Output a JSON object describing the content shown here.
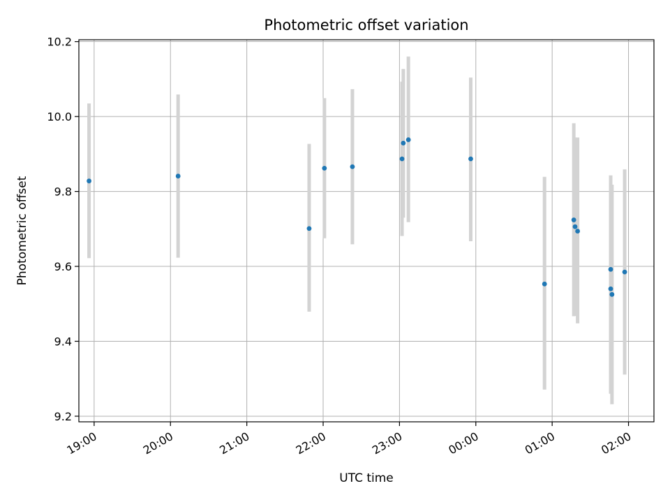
{
  "chart_data": {
    "type": "scatter",
    "title": "Photometric offset variation",
    "xlabel": "UTC time",
    "ylabel": "Photometric offset",
    "x_axis": {
      "kind": "time",
      "range": [
        "18:48",
        "02:20"
      ],
      "ticks": [
        {
          "t": "18:60",
          "label": "19:00"
        },
        {
          "t": "20:00",
          "label": "20:00"
        },
        {
          "t": "21:00",
          "label": "21:00"
        },
        {
          "t": "22:00",
          "label": "22:00"
        },
        {
          "t": "23:00",
          "label": "23:00"
        },
        {
          "t": "24:00",
          "label": "00:00"
        },
        {
          "t": "25:00",
          "label": "01:00"
        },
        {
          "t": "26:00",
          "label": "02:00"
        }
      ]
    },
    "y_axis": {
      "range": [
        9.185,
        10.205
      ],
      "ticks": [
        "9.2",
        "9.4",
        "9.6",
        "9.8",
        "10.0",
        "10.2"
      ]
    },
    "grid": true,
    "colors": {
      "marker": "#1f77b4",
      "errorbar": "#d3d3d3",
      "grid": "#b0b0b0"
    },
    "points": [
      {
        "time": "18:56",
        "offset": 9.828,
        "low": 9.622,
        "high": 10.035
      },
      {
        "time": "20:06",
        "offset": 9.841,
        "low": 9.623,
        "high": 10.059
      },
      {
        "time": "21:49",
        "offset": 9.701,
        "low": 9.479,
        "high": 9.927
      },
      {
        "time": "22:01",
        "offset": 9.862,
        "low": 9.675,
        "high": 10.049
      },
      {
        "time": "22:23",
        "offset": 9.866,
        "low": 9.659,
        "high": 10.073
      },
      {
        "time": "23:02",
        "offset": 9.887,
        "low": 9.681,
        "high": 10.093
      },
      {
        "time": "23:03",
        "offset": 9.929,
        "low": 9.73,
        "high": 10.127
      },
      {
        "time": "23:07",
        "offset": 9.938,
        "low": 9.718,
        "high": 10.16
      },
      {
        "time": "23:56",
        "offset": 9.887,
        "low": 9.667,
        "high": 10.104
      },
      {
        "time": "00:54",
        "offset": 9.553,
        "low": 9.271,
        "high": 9.839
      },
      {
        "time": "01:17",
        "offset": 9.724,
        "low": 9.467,
        "high": 9.982
      },
      {
        "time": "01:18",
        "offset": 9.706,
        "low": 9.468,
        "high": 9.944
      },
      {
        "time": "01:20",
        "offset": 9.694,
        "low": 9.448,
        "high": 9.944
      },
      {
        "time": "01:46",
        "offset": 9.592,
        "low": 9.312,
        "high": 9.843
      },
      {
        "time": "01:46",
        "offset": 9.54,
        "low": 9.26,
        "high": 9.82
      },
      {
        "time": "01:47",
        "offset": 9.525,
        "low": 9.232,
        "high": 9.818
      },
      {
        "time": "01:57",
        "offset": 9.585,
        "low": 9.311,
        "high": 9.859
      }
    ]
  }
}
